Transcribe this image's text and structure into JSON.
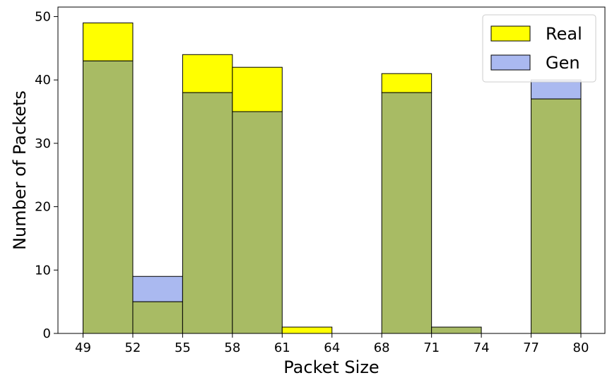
{
  "chart_data": {
    "type": "bar",
    "xlabel": "Packet Size",
    "ylabel": "Number of Packets",
    "categories": [
      "49-52",
      "52-55",
      "55-58",
      "58-61",
      "61-64",
      "64-68",
      "68-71",
      "71-74",
      "74-77",
      "77-80"
    ],
    "x_tick_labels": [
      "49",
      "52",
      "55",
      "58",
      "61",
      "64",
      "68",
      "71",
      "74",
      "77",
      "80"
    ],
    "y_ticks": [
      0,
      10,
      20,
      30,
      40,
      50
    ],
    "ylim": [
      0,
      51.5
    ],
    "grid": false,
    "legend_position": "top-right",
    "series": [
      {
        "name": "Real",
        "color": "#ffff00",
        "values": [
          49,
          5,
          44,
          42,
          1,
          0,
          41,
          1,
          0,
          37
        ]
      },
      {
        "name": "Gen",
        "color": "#aab9f0",
        "values": [
          43,
          9,
          38,
          35,
          0,
          0,
          38,
          1,
          0,
          40
        ]
      }
    ],
    "overlap_color": "#a8bb64"
  }
}
